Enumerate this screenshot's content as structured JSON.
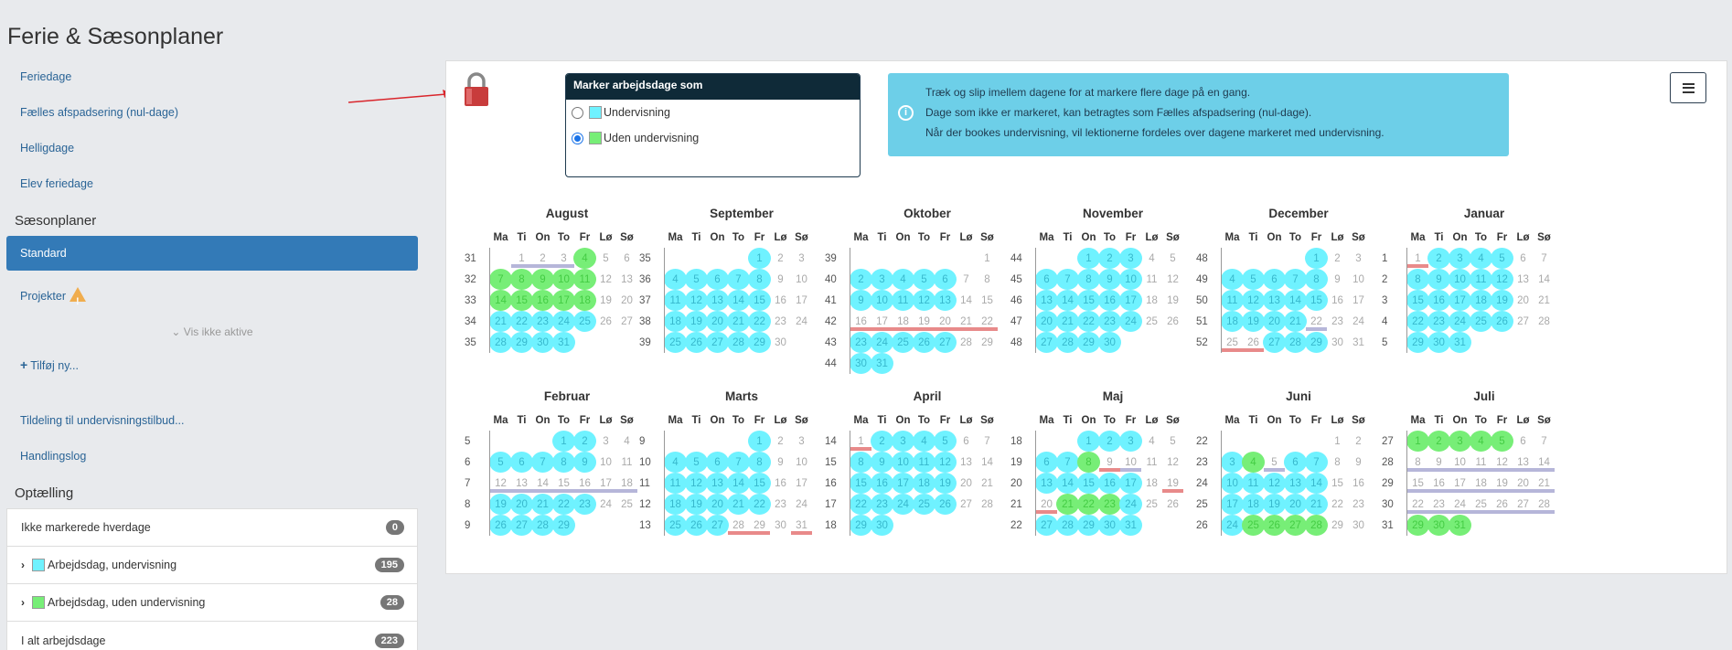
{
  "page_title": "Ferie & Sæsonplaner",
  "sidebar": {
    "links": [
      "Feriedage",
      "Fælles afspadsering (nul-dage)",
      "Helligdage",
      "Elev feriedage"
    ],
    "saesonplaner_heading": "Sæsonplaner",
    "active_item": "Standard",
    "projekter": "Projekter",
    "vis_ikke_aktive": "Vis ikke aktive",
    "add_new": "Tilføj ny...",
    "links2": [
      "Tildeling til undervisningstilbud...",
      "Handlingslog"
    ],
    "optaelling_heading": "Optælling",
    "counts": [
      {
        "label": "Ikke markerede hverdage",
        "value": "0"
      },
      {
        "label": "Arbejdsdag, undervisning",
        "value": "195"
      },
      {
        "label": "Arbejdsdag, uden undervisning",
        "value": "28"
      },
      {
        "label": "I alt arbejdsdage",
        "value": "223"
      }
    ]
  },
  "marker": {
    "title": "Marker arbejdsdage som",
    "opt1": "Undervisning",
    "opt2": "Uden undervisning",
    "selected": "Uden undervisning"
  },
  "info": {
    "line1": "Træk og slip imellem dagene for at markere flere dage på en gang.",
    "line2": "Dage som ikke er markeret, kan betragtes som Fælles afspadsering (nul-dage).",
    "line3": "Når der bookes undervisning, vil lektionerne fordeles over dagene markeret med undervisning."
  },
  "colors": {
    "undervisning": "#6ff2ff",
    "uden_undervisning": "#77ee77",
    "accent": "#337ab7"
  },
  "day_headers": [
    "Ma",
    "Ti",
    "On",
    "To",
    "Fr",
    "Lø",
    "Sø"
  ],
  "months": [
    {
      "name": "August",
      "rows": [
        {
          "wk": "31",
          "days": [
            "",
            "1",
            "2",
            "3",
            "4g",
            "5",
            "6"
          ]
        },
        {
          "wk": "32",
          "days": [
            "7g",
            "8g",
            "9g",
            "10g",
            "11g",
            "12",
            "13"
          ]
        },
        {
          "wk": "33",
          "days": [
            "14g",
            "15g",
            "16g",
            "17g",
            "18g",
            "19",
            "20"
          ]
        },
        {
          "wk": "34",
          "days": [
            "21u",
            "22u",
            "23u",
            "24u",
            "25u",
            "26",
            "27"
          ]
        },
        {
          "wk": "35",
          "days": [
            "28u",
            "29u",
            "30u",
            "31u",
            "",
            "",
            ""
          ]
        }
      ],
      "bars": [
        {
          "row": 0,
          "from": 1,
          "to": 3,
          "c": "gray"
        }
      ]
    },
    {
      "name": "September",
      "rows": [
        {
          "wk": "35",
          "days": [
            "",
            "",
            "",
            "",
            "1u",
            "2",
            "3"
          ]
        },
        {
          "wk": "36",
          "days": [
            "4u",
            "5u",
            "6u",
            "7u",
            "8u",
            "9",
            "10"
          ]
        },
        {
          "wk": "37",
          "days": [
            "11u",
            "12u",
            "13u",
            "14u",
            "15u",
            "16",
            "17"
          ]
        },
        {
          "wk": "38",
          "days": [
            "18u",
            "19u",
            "20u",
            "21u",
            "22u",
            "23",
            "24"
          ]
        },
        {
          "wk": "39",
          "days": [
            "25u",
            "26u",
            "27u",
            "28u",
            "29u",
            "30",
            ""
          ]
        }
      ],
      "bars": []
    },
    {
      "name": "Oktober",
      "rows": [
        {
          "wk": "39",
          "days": [
            "",
            "",
            "",
            "",
            "",
            "",
            "1"
          ]
        },
        {
          "wk": "40",
          "days": [
            "2u",
            "3u",
            "4u",
            "5u",
            "6u",
            "7",
            "8"
          ]
        },
        {
          "wk": "41",
          "days": [
            "9u",
            "10u",
            "11u",
            "12u",
            "13u",
            "14",
            "15"
          ]
        },
        {
          "wk": "42",
          "days": [
            "16",
            "17",
            "18",
            "19",
            "20",
            "21",
            "22"
          ]
        },
        {
          "wk": "43",
          "days": [
            "23u",
            "24u",
            "25u",
            "26u",
            "27u",
            "28",
            "29"
          ]
        },
        {
          "wk": "44",
          "days": [
            "30u",
            "31u",
            "",
            "",
            "",
            "",
            ""
          ]
        }
      ],
      "bars": [
        {
          "row": 3,
          "from": 0,
          "to": 6,
          "c": "red"
        }
      ]
    },
    {
      "name": "November",
      "rows": [
        {
          "wk": "44",
          "days": [
            "",
            "",
            "1u",
            "2u",
            "3u",
            "4",
            "5"
          ]
        },
        {
          "wk": "45",
          "days": [
            "6u",
            "7u",
            "8u",
            "9u",
            "10u",
            "11",
            "12"
          ]
        },
        {
          "wk": "46",
          "days": [
            "13u",
            "14u",
            "15u",
            "16u",
            "17u",
            "18",
            "19"
          ]
        },
        {
          "wk": "47",
          "days": [
            "20u",
            "21u",
            "22u",
            "23u",
            "24u",
            "25",
            "26"
          ]
        },
        {
          "wk": "48",
          "days": [
            "27u",
            "28u",
            "29u",
            "30u",
            "",
            "",
            ""
          ]
        }
      ],
      "bars": []
    },
    {
      "name": "December",
      "rows": [
        {
          "wk": "48",
          "days": [
            "",
            "",
            "",
            "",
            "1u",
            "2",
            "3"
          ]
        },
        {
          "wk": "49",
          "days": [
            "4u",
            "5u",
            "6u",
            "7u",
            "8u",
            "9",
            "10"
          ]
        },
        {
          "wk": "50",
          "days": [
            "11u",
            "12u",
            "13u",
            "14u",
            "15u",
            "16",
            "17"
          ]
        },
        {
          "wk": "51",
          "days": [
            "18u",
            "19u",
            "20u",
            "21u",
            "22",
            "23",
            "24"
          ]
        },
        {
          "wk": "52",
          "days": [
            "25",
            "26",
            "27u",
            "28u",
            "29u",
            "30",
            "31"
          ]
        }
      ],
      "bars": [
        {
          "row": 3,
          "from": 4,
          "to": 4,
          "c": "gray"
        },
        {
          "row": 4,
          "from": 0,
          "to": 1,
          "c": "red"
        }
      ]
    },
    {
      "name": "Januar",
      "rows": [
        {
          "wk": "1",
          "days": [
            "1",
            "2u",
            "3u",
            "4u",
            "5u",
            "6",
            "7"
          ]
        },
        {
          "wk": "2",
          "days": [
            "8u",
            "9u",
            "10u",
            "11u",
            "12u",
            "13",
            "14"
          ]
        },
        {
          "wk": "3",
          "days": [
            "15u",
            "16u",
            "17u",
            "18u",
            "19u",
            "20",
            "21"
          ]
        },
        {
          "wk": "4",
          "days": [
            "22u",
            "23u",
            "24u",
            "25u",
            "26u",
            "27",
            "28"
          ]
        },
        {
          "wk": "5",
          "days": [
            "29u",
            "30u",
            "31u",
            "",
            "",
            "",
            ""
          ]
        }
      ],
      "bars": [
        {
          "row": 0,
          "from": 0,
          "to": 0,
          "c": "red"
        }
      ]
    },
    {
      "name": "Februar",
      "rows": [
        {
          "wk": "5",
          "days": [
            "",
            "",
            "",
            "1u",
            "2u",
            "3",
            "4"
          ]
        },
        {
          "wk": "6",
          "days": [
            "5u",
            "6u",
            "7u",
            "8u",
            "9u",
            "10",
            "11"
          ]
        },
        {
          "wk": "7",
          "days": [
            "12",
            "13",
            "14",
            "15",
            "16",
            "17",
            "18"
          ]
        },
        {
          "wk": "8",
          "days": [
            "19u",
            "20u",
            "21u",
            "22u",
            "23u",
            "24",
            "25"
          ]
        },
        {
          "wk": "9",
          "days": [
            "26u",
            "27u",
            "28u",
            "29u",
            "",
            "",
            ""
          ]
        }
      ],
      "bars": [
        {
          "row": 2,
          "from": 0,
          "to": 6,
          "c": "gray"
        }
      ]
    },
    {
      "name": "Marts",
      "rows": [
        {
          "wk": "9",
          "days": [
            "",
            "",
            "",
            "",
            "1u",
            "2",
            "3"
          ]
        },
        {
          "wk": "10",
          "days": [
            "4u",
            "5u",
            "6u",
            "7u",
            "8u",
            "9",
            "10"
          ]
        },
        {
          "wk": "11",
          "days": [
            "11u",
            "12u",
            "13u",
            "14u",
            "15u",
            "16",
            "17"
          ]
        },
        {
          "wk": "12",
          "days": [
            "18u",
            "19u",
            "20u",
            "21u",
            "22u",
            "23",
            "24"
          ]
        },
        {
          "wk": "13",
          "days": [
            "25u",
            "26u",
            "27u",
            "28",
            "29",
            "30",
            "31"
          ]
        }
      ],
      "bars": [
        {
          "row": 4,
          "from": 3,
          "to": 4,
          "c": "red"
        },
        {
          "row": 4,
          "from": 6,
          "to": 6,
          "c": "red"
        }
      ]
    },
    {
      "name": "April",
      "rows": [
        {
          "wk": "14",
          "days": [
            "1",
            "2u",
            "3u",
            "4u",
            "5u",
            "6",
            "7"
          ]
        },
        {
          "wk": "15",
          "days": [
            "8u",
            "9u",
            "10u",
            "11u",
            "12u",
            "13",
            "14"
          ]
        },
        {
          "wk": "16",
          "days": [
            "15u",
            "16u",
            "17u",
            "18u",
            "19u",
            "20",
            "21"
          ]
        },
        {
          "wk": "17",
          "days": [
            "22u",
            "23u",
            "24u",
            "25u",
            "26u",
            "27",
            "28"
          ]
        },
        {
          "wk": "18",
          "days": [
            "29u",
            "30u",
            "",
            "",
            "",
            "",
            ""
          ]
        }
      ],
      "bars": [
        {
          "row": 0,
          "from": 0,
          "to": 0,
          "c": "red"
        }
      ]
    },
    {
      "name": "Maj",
      "rows": [
        {
          "wk": "18",
          "days": [
            "",
            "",
            "1u",
            "2u",
            "3u",
            "4",
            "5"
          ]
        },
        {
          "wk": "19",
          "days": [
            "6u",
            "7u",
            "8g",
            "9",
            "10",
            "11",
            "12"
          ]
        },
        {
          "wk": "20",
          "days": [
            "13u",
            "14u",
            "15u",
            "16u",
            "17u",
            "18",
            "19"
          ]
        },
        {
          "wk": "21",
          "days": [
            "20",
            "21g",
            "22g",
            "23g",
            "24u",
            "25",
            "26"
          ]
        },
        {
          "wk": "22",
          "days": [
            "27u",
            "28u",
            "29u",
            "30u",
            "31u",
            "",
            ""
          ]
        }
      ],
      "bars": [
        {
          "row": 1,
          "from": 3,
          "to": 3,
          "c": "red"
        },
        {
          "row": 1,
          "from": 4,
          "to": 4,
          "c": "gray"
        },
        {
          "row": 2,
          "from": 6,
          "to": 6,
          "c": "red"
        },
        {
          "row": 3,
          "from": 0,
          "to": 0,
          "c": "red"
        }
      ]
    },
    {
      "name": "Juni",
      "rows": [
        {
          "wk": "22",
          "days": [
            "",
            "",
            "",
            "",
            "",
            "1",
            "2"
          ]
        },
        {
          "wk": "23",
          "days": [
            "3u",
            "4g",
            "5",
            "6u",
            "7u",
            "8",
            "9"
          ]
        },
        {
          "wk": "24",
          "days": [
            "10u",
            "11u",
            "12u",
            "13u",
            "14u",
            "15",
            "16"
          ]
        },
        {
          "wk": "25",
          "days": [
            "17u",
            "18u",
            "19u",
            "20u",
            "21u",
            "22",
            "23"
          ]
        },
        {
          "wk": "26",
          "days": [
            "24u",
            "25g",
            "26g",
            "27g",
            "28g",
            "29",
            "30"
          ]
        }
      ],
      "bars": [
        {
          "row": 1,
          "from": 2,
          "to": 2,
          "c": "gray"
        }
      ]
    },
    {
      "name": "Juli",
      "rows": [
        {
          "wk": "27",
          "days": [
            "1g",
            "2g",
            "3g",
            "4g",
            "5g",
            "6",
            "7"
          ]
        },
        {
          "wk": "28",
          "days": [
            "8",
            "9",
            "10",
            "11",
            "12",
            "13",
            "14"
          ]
        },
        {
          "wk": "29",
          "days": [
            "15",
            "16",
            "17",
            "18",
            "19",
            "20",
            "21"
          ]
        },
        {
          "wk": "30",
          "days": [
            "22",
            "23",
            "24",
            "25",
            "26",
            "27",
            "28"
          ]
        },
        {
          "wk": "31",
          "days": [
            "29g",
            "30g",
            "31g",
            "",
            "",
            "",
            ""
          ]
        }
      ],
      "bars": [
        {
          "row": 1,
          "from": 0,
          "to": 6,
          "c": "gray"
        },
        {
          "row": 2,
          "from": 0,
          "to": 6,
          "c": "gray"
        },
        {
          "row": 3,
          "from": 0,
          "to": 6,
          "c": "gray"
        }
      ]
    }
  ]
}
